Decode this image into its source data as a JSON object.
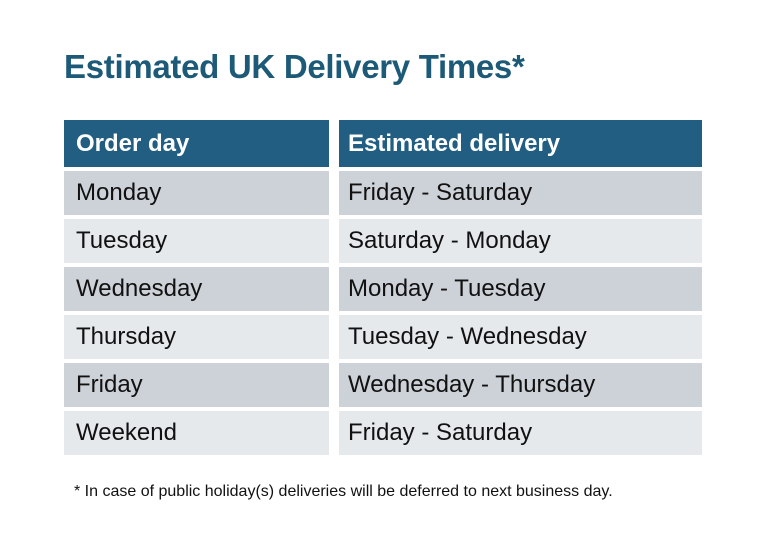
{
  "title": "Estimated UK Delivery Times*",
  "table": {
    "headers": [
      "Order day",
      "Estimated delivery"
    ],
    "rows": [
      {
        "order_day": "Monday",
        "estimated_delivery": "Friday - Saturday"
      },
      {
        "order_day": "Tuesday",
        "estimated_delivery": "Saturday - Monday"
      },
      {
        "order_day": "Wednesday",
        "estimated_delivery": "Monday - Tuesday"
      },
      {
        "order_day": "Thursday",
        "estimated_delivery": "Tuesday - Wednesday"
      },
      {
        "order_day": "Friday",
        "estimated_delivery": "Wednesday - Thursday"
      },
      {
        "order_day": "Weekend",
        "estimated_delivery": "Friday - Saturday"
      }
    ]
  },
  "footnote": "* In case of public holiday(s) deliveries will be deferred to next business day.",
  "colors": {
    "title_text": "#1d5a78",
    "header_bg": "#215e82",
    "header_text": "#ffffff",
    "row_alt_dark": "#cdd1d8",
    "row_alt_light": "#e6e9ec",
    "body_text": "#111111",
    "background": "#ffffff"
  }
}
